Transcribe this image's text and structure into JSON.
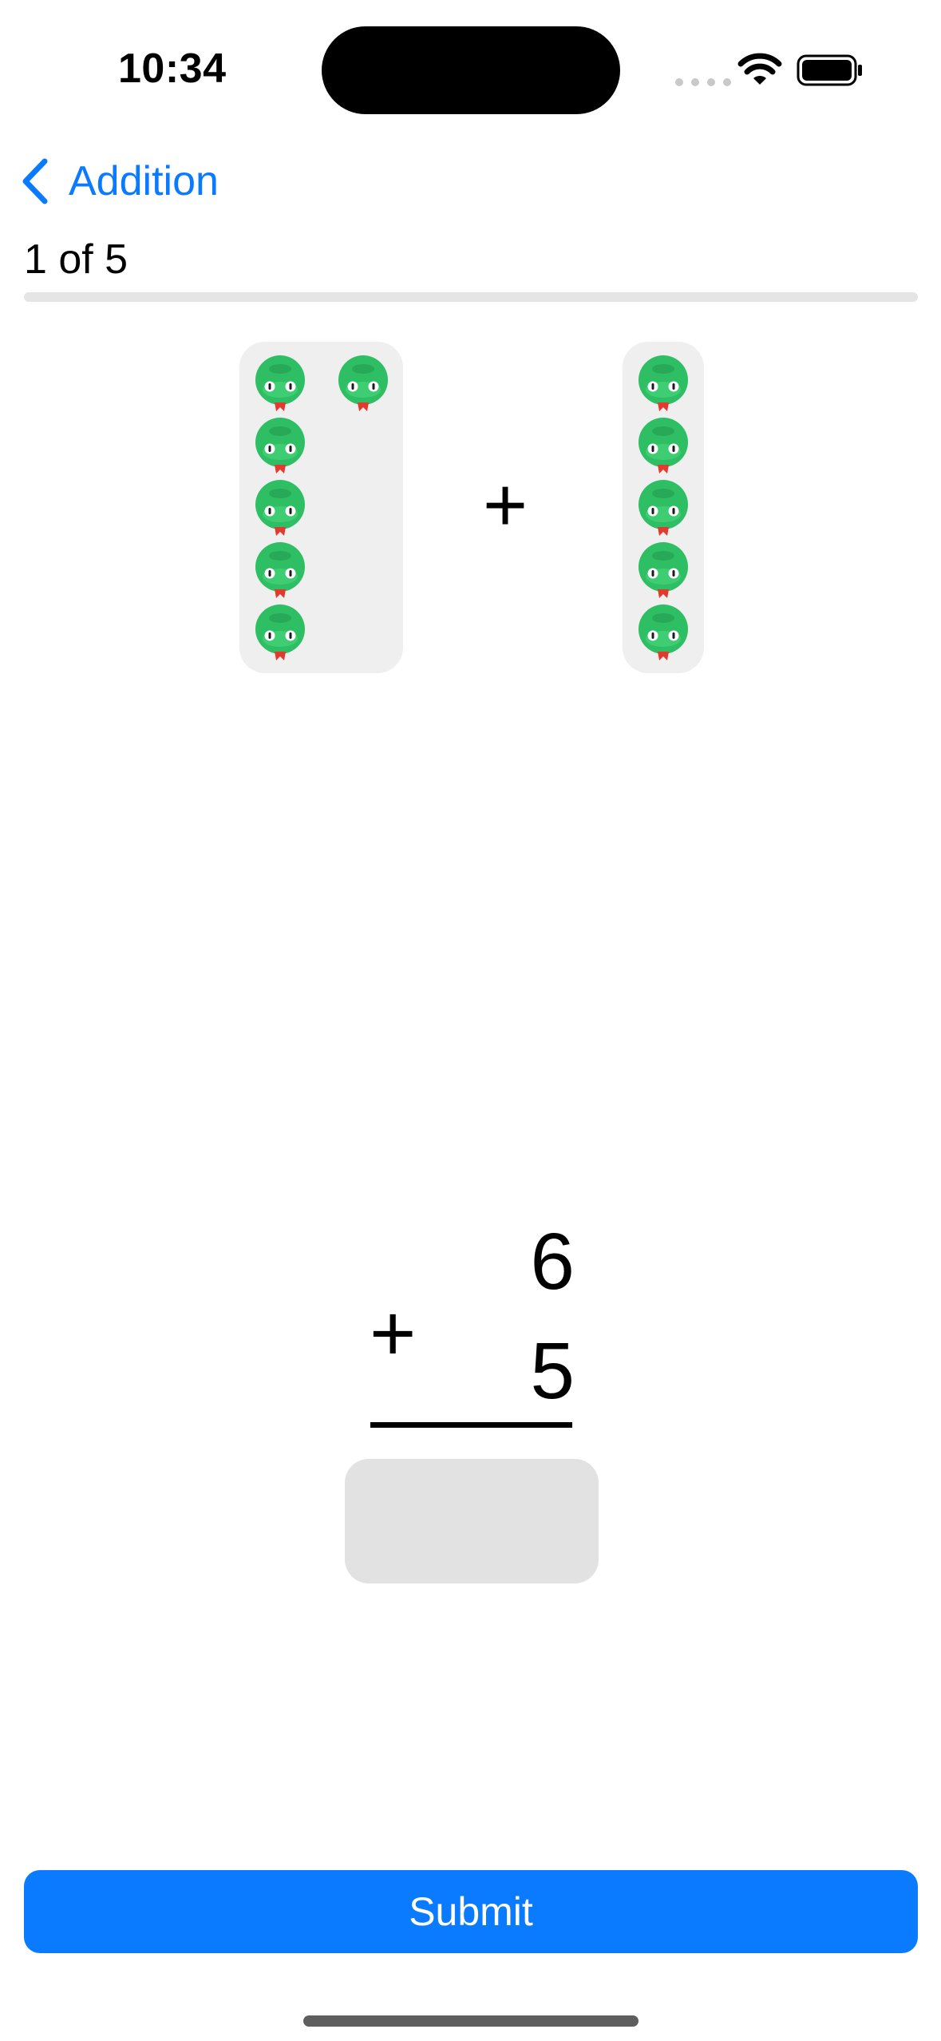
{
  "status_bar": {
    "time": "10:34"
  },
  "nav": {
    "back_label": "Addition"
  },
  "progress": {
    "label": "1 of 5",
    "fraction": 0.0
  },
  "visual": {
    "left_count": 6,
    "right_count": 5,
    "operator": "+",
    "counter_icon": "alligator-icon"
  },
  "problem": {
    "top_number": "6",
    "operator": "+",
    "bottom_number": "5"
  },
  "answer": {
    "value": "",
    "placeholder": ""
  },
  "submit": {
    "label": "Submit"
  },
  "colors": {
    "accent": "#0A7AFF",
    "counter_bg": "#EFEFEF",
    "answer_bg": "#E2E2E2",
    "gator_green": "#2EBE63",
    "tongue_red": "#E23A2F"
  }
}
